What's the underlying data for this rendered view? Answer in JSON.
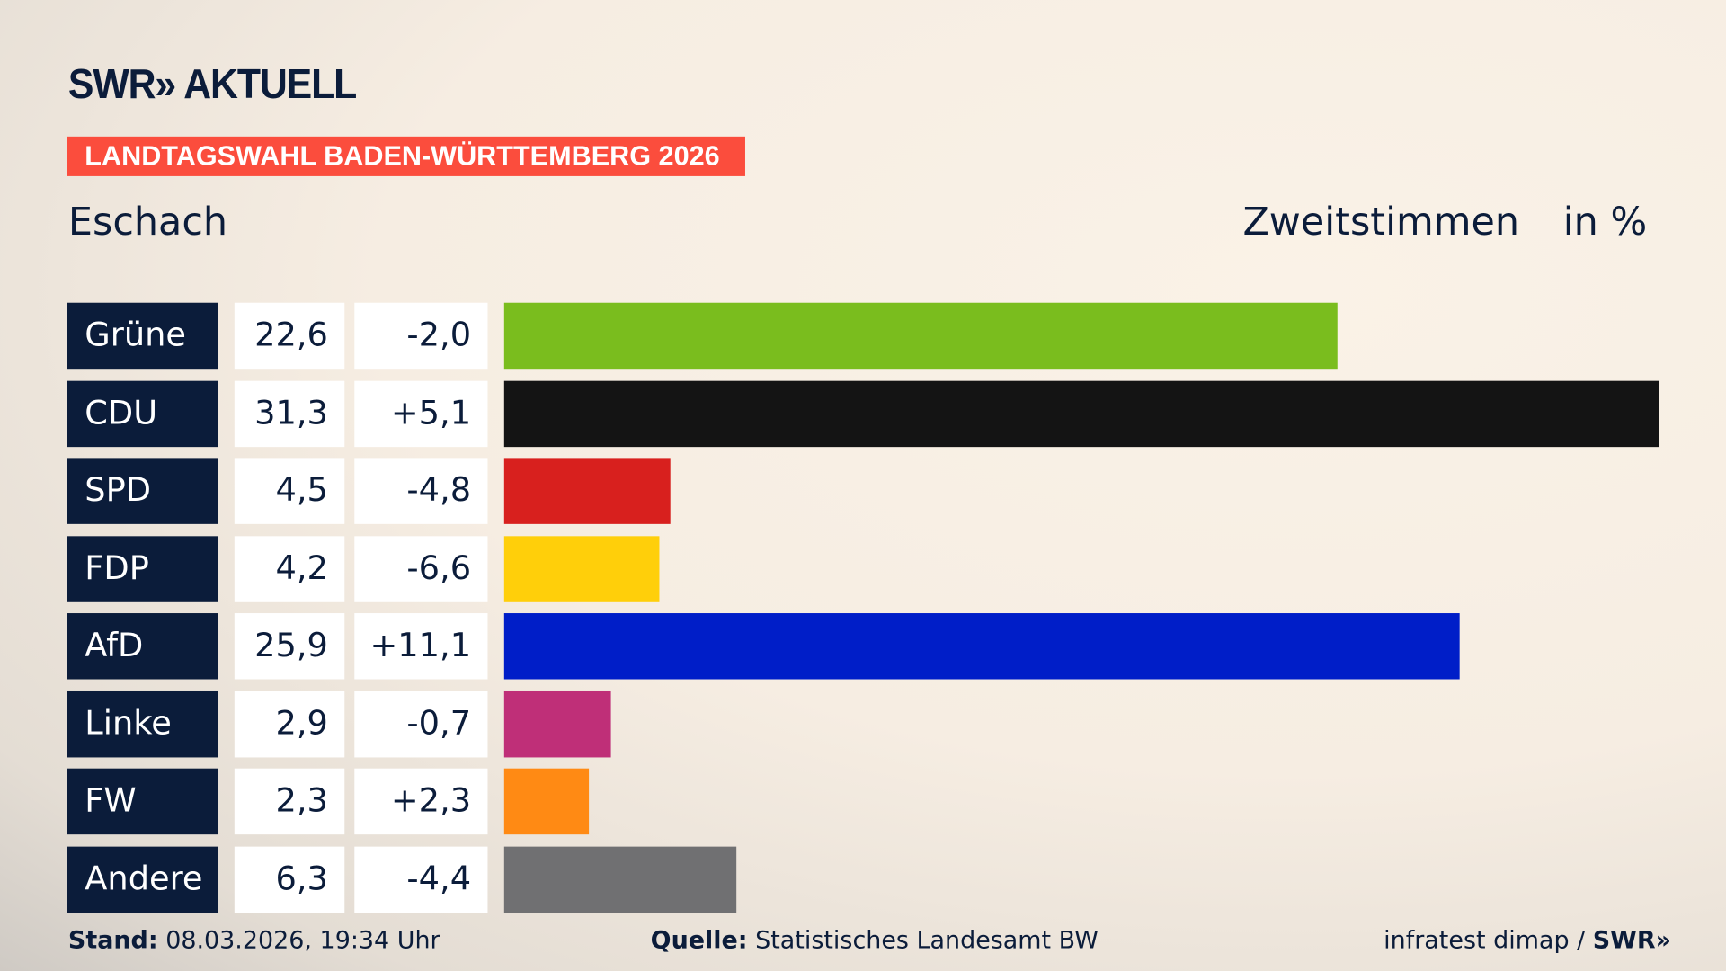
{
  "brand": "SWR» AKTUELL",
  "banner": "LANDTAGSWAHL BADEN-WÜRTTEMBERG 2026",
  "region": "Eschach",
  "header": {
    "measure": "Zweitstimmen",
    "unit": "in %"
  },
  "chart_data": {
    "type": "bar",
    "orientation": "horizontal",
    "categories": [
      "Grüne",
      "CDU",
      "SPD",
      "FDP",
      "AfD",
      "Linke",
      "FW",
      "Andere"
    ],
    "values": [
      22.6,
      31.3,
      4.5,
      4.2,
      25.9,
      2.9,
      2.3,
      6.3
    ],
    "labels": [
      "22,6",
      "31,3",
      "4,5",
      "4,2",
      "25,9",
      "2,9",
      "2,3",
      "6,3"
    ],
    "diffs": [
      "-2,0",
      "+5,1",
      "-4,8",
      "-6,6",
      "+11,1",
      "-0,7",
      "+2,3",
      "-4,4"
    ],
    "colors": [
      "#7abd1e",
      "#141414",
      "#d8201e",
      "#ffcf0a",
      "#001ec8",
      "#bf2f78",
      "#ff8a14",
      "#707072"
    ],
    "xlim": [
      0,
      31.3
    ]
  },
  "footer": {
    "stand_label": "Stand:",
    "stand_value": "08.03.2026, 19:34 Uhr",
    "source_label": "Quelle:",
    "source_value": "Statistisches Landesamt BW",
    "credit": "infratest dimap / ",
    "credit_brand": "SWR»"
  }
}
